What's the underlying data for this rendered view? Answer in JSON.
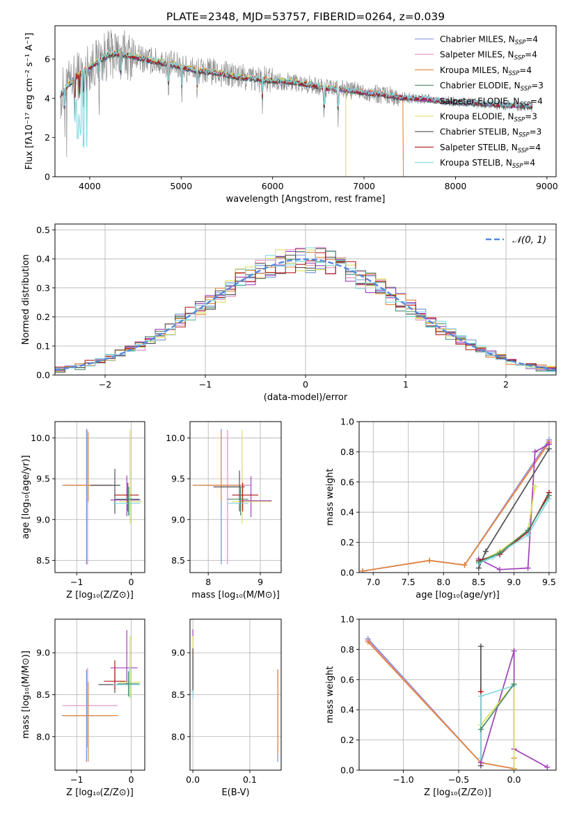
{
  "colors": {
    "series": [
      "#6f8fd8",
      "#e58bc4",
      "#e0863a",
      "#4a8a6a",
      "#a040b8",
      "#d8e05a",
      "#505050",
      "#b01818",
      "#80d8e0"
    ],
    "observed": "#8a8a8a",
    "normal": "#5588dd",
    "grid": "#b0b0b0"
  },
  "chart_data": [
    {
      "id": "spectrum",
      "type": "line",
      "title": "PLATE=2348, MJD=53757, FIBERID=0264, z=0.039",
      "xlabel": "wavelength [Angstrom, rest frame]",
      "ylabel": "Flux [fλ10⁻¹⁷ erg cm⁻² s⁻¹ A⁻¹]",
      "xlim": [
        3620,
        9100
      ],
      "ylim": [
        0,
        7.7
      ],
      "xticks": [
        4000,
        5000,
        6000,
        7000,
        8000,
        9000
      ],
      "yticks": [
        0,
        2,
        4,
        6
      ],
      "grid": false,
      "legend": "top-right",
      "legend_entries": [
        {
          "label": "Chabrier MILES, N",
          "sub": "SSP",
          "tail": "=4"
        },
        {
          "label": "Salpeter MILES, N",
          "sub": "SSP",
          "tail": "=4"
        },
        {
          "label": "Kroupa MILES, N",
          "sub": "SSP",
          "tail": "=4"
        },
        {
          "label": "Chabrier ELODIE, N",
          "sub": "SSP",
          "tail": "=3"
        },
        {
          "label": "Salpeter ELODIE, N",
          "sub": "SSP",
          "tail": "=4"
        },
        {
          "label": "Kroupa ELODIE, N",
          "sub": "SSP",
          "tail": "=3"
        },
        {
          "label": "Chabrier STELIB, N",
          "sub": "SSP",
          "tail": "=3"
        },
        {
          "label": "Salpeter STELIB, N",
          "sub": "SSP",
          "tail": "=4"
        },
        {
          "label": "Kroupa STELIB, N",
          "sub": "SSP",
          "tail": "=4"
        }
      ],
      "continuum": [
        [
          3680,
          4.2
        ],
        [
          3750,
          4.6
        ],
        [
          3850,
          5.1
        ],
        [
          4000,
          5.6
        ],
        [
          4100,
          5.9
        ],
        [
          4200,
          6.2
        ],
        [
          4300,
          6.3
        ],
        [
          4400,
          6.2
        ],
        [
          4500,
          6.1
        ],
        [
          4600,
          6.0
        ],
        [
          4800,
          5.8
        ],
        [
          5000,
          5.6
        ],
        [
          5200,
          5.4
        ],
        [
          5400,
          5.3
        ],
        [
          5600,
          5.1
        ],
        [
          5800,
          5.0
        ],
        [
          6000,
          4.9
        ],
        [
          6200,
          4.85
        ],
        [
          6400,
          4.7
        ],
        [
          6600,
          4.5
        ],
        [
          6800,
          4.45
        ],
        [
          7000,
          4.3
        ],
        [
          7200,
          4.2
        ],
        [
          7400,
          4.05
        ],
        [
          7600,
          4.0
        ],
        [
          7800,
          3.9
        ],
        [
          8000,
          3.8
        ],
        [
          8200,
          3.75
        ],
        [
          8400,
          3.7
        ],
        [
          8600,
          3.65
        ],
        [
          8840,
          3.6
        ]
      ],
      "model_ends": [
        8840,
        8840,
        7430,
        8840,
        8840,
        6800,
        8840,
        8840,
        8840
      ]
    },
    {
      "id": "residuals",
      "type": "line",
      "xlabel": "(data-model)/error",
      "ylabel": "Normed distribution",
      "xlim": [
        -2.5,
        2.5
      ],
      "ylim": [
        0,
        0.52
      ],
      "xticks": [
        -2,
        -1,
        0,
        1,
        2
      ],
      "yticks": [
        0.0,
        0.1,
        0.2,
        0.3,
        0.4,
        0.5
      ],
      "grid": true,
      "legend": "top-right",
      "legend_label": "𝒩(0, 1)",
      "bin_width": 0.1
    },
    {
      "id": "age-vs-Z",
      "type": "scatter",
      "xlabel": "Z [log₁₀(Z/Z⊙)]",
      "ylabel": "age  [log₁₀(age/yr)]",
      "xlim": [
        -1.4,
        0.25
      ],
      "ylim": [
        8.35,
        10.2
      ],
      "xticks": [
        -1,
        0
      ],
      "yticks": [
        8.5,
        9.0,
        9.5,
        10.0
      ],
      "grid": true,
      "points": [
        {
          "x": -0.82,
          "y": 9.42,
          "xerr": [
            0.45,
            0.45
          ],
          "yerr": [
            0.97,
            0.69
          ],
          "c": 0
        },
        {
          "x": -0.8,
          "y": 9.42,
          "xerr": [
            0.46,
            0.46
          ],
          "yerr": [
            0.97,
            0.68
          ],
          "c": 1
        },
        {
          "x": -0.79,
          "y": 9.42,
          "xerr": [
            0.45,
            0.45
          ],
          "yerr": [
            0.2,
            0.65
          ],
          "c": 2
        },
        {
          "x": -0.3,
          "y": 9.42,
          "xerr": [
            0.45,
            0.1
          ],
          "yerr": [
            0.35,
            0.2
          ],
          "c": 6
        },
        {
          "x": -0.08,
          "y": 9.24,
          "xerr": [
            0.3,
            0.25
          ],
          "yerr": [
            0.2,
            0.3
          ],
          "c": 4
        },
        {
          "x": -0.02,
          "y": 9.22,
          "xerr": [
            0.2,
            0.23
          ],
          "yerr": [
            0.27,
            0.88
          ],
          "c": 5
        },
        {
          "x": -0.06,
          "y": 9.3,
          "xerr": [
            0.25,
            0.2
          ],
          "yerr": [
            0.2,
            0.15
          ],
          "c": 7
        },
        {
          "x": -0.03,
          "y": 9.2,
          "xerr": [
            0.3,
            0.2
          ],
          "yerr": [
            0.15,
            0.2
          ],
          "c": 8
        },
        {
          "x": -0.05,
          "y": 9.25,
          "xerr": [
            0.25,
            0.2
          ],
          "yerr": [
            0.2,
            0.15
          ],
          "c": 3
        }
      ]
    },
    {
      "id": "age-vs-mass",
      "type": "scatter",
      "xlabel": "mass [log₁₀(M/M⊙)]",
      "ylabel": "",
      "xlim": [
        7.65,
        9.4
      ],
      "ylim": [
        8.35,
        10.2
      ],
      "xticks": [
        8,
        9
      ],
      "yticks": [
        8.5,
        9.0,
        9.5,
        10.0
      ],
      "grid": true,
      "points": [
        {
          "x": 8.25,
          "y": 9.42,
          "xerr": [
            0.55,
            0.55
          ],
          "yerr": [
            0.97,
            0.69
          ],
          "c": 0
        },
        {
          "x": 8.37,
          "y": 9.42,
          "xerr": [
            0.5,
            0.45
          ],
          "yerr": [
            0.97,
            0.68
          ],
          "c": 1
        },
        {
          "x": 8.25,
          "y": 9.42,
          "xerr": [
            0.55,
            0.4
          ],
          "yerr": [
            0.2,
            0.65
          ],
          "c": 2
        },
        {
          "x": 8.6,
          "y": 9.4,
          "xerr": [
            0.5,
            0.1
          ],
          "yerr": [
            0.3,
            0.2
          ],
          "c": 6
        },
        {
          "x": 8.82,
          "y": 9.23,
          "xerr": [
            0.2,
            0.4
          ],
          "yerr": [
            0.2,
            0.3
          ],
          "c": 4
        },
        {
          "x": 8.65,
          "y": 9.22,
          "xerr": [
            0.2,
            0.55
          ],
          "yerr": [
            0.27,
            0.88
          ],
          "c": 5
        },
        {
          "x": 8.66,
          "y": 9.3,
          "xerr": [
            0.2,
            0.3
          ],
          "yerr": [
            0.2,
            0.15
          ],
          "c": 7
        },
        {
          "x": 8.62,
          "y": 9.2,
          "xerr": [
            0.25,
            0.15
          ],
          "yerr": [
            0.15,
            0.2
          ],
          "c": 8
        },
        {
          "x": 8.62,
          "y": 9.25,
          "xerr": [
            0.25,
            0.15
          ],
          "yerr": [
            0.2,
            0.15
          ],
          "c": 3
        }
      ]
    },
    {
      "id": "weight-vs-age",
      "type": "line",
      "xlabel": "age  [log₁₀(age/yr)]",
      "ylabel": "mass weight",
      "xlim": [
        6.8,
        9.6
      ],
      "ylim": [
        0,
        1.0
      ],
      "xticks": [
        7.0,
        7.5,
        8.0,
        8.5,
        9.0,
        9.5
      ],
      "yticks": [
        0.0,
        0.2,
        0.4,
        0.6,
        0.8,
        1.0
      ],
      "grid": true,
      "series": [
        {
          "c": 0,
          "x": [
            6.85,
            7.8,
            8.3,
            9.5
          ],
          "y": [
            0.01,
            0.08,
            0.05,
            0.88
          ]
        },
        {
          "c": 1,
          "x": [
            6.85,
            7.8,
            8.3,
            9.5
          ],
          "y": [
            0.01,
            0.08,
            0.05,
            0.87
          ]
        },
        {
          "c": 2,
          "x": [
            6.85,
            7.8,
            8.3,
            9.5
          ],
          "y": [
            0.01,
            0.08,
            0.05,
            0.86
          ]
        },
        {
          "c": 6,
          "x": [
            8.5,
            8.6,
            9.5
          ],
          "y": [
            0.03,
            0.14,
            0.82
          ]
        },
        {
          "c": 4,
          "x": [
            8.5,
            8.8,
            9.2,
            9.3,
            9.5
          ],
          "y": [
            0.09,
            0.02,
            0.03,
            0.8,
            0.85
          ]
        },
        {
          "c": 5,
          "x": [
            8.5,
            8.8,
            9.2,
            9.3
          ],
          "y": [
            0.07,
            0.14,
            0.28,
            0.57
          ]
        },
        {
          "c": 7,
          "x": [
            8.5,
            8.8,
            9.2,
            9.5
          ],
          "y": [
            0.08,
            0.12,
            0.27,
            0.53
          ]
        },
        {
          "c": 8,
          "x": [
            8.5,
            8.7,
            9.2,
            9.5
          ],
          "y": [
            0.06,
            0.1,
            0.25,
            0.49
          ]
        },
        {
          "c": 3,
          "x": [
            8.5,
            8.8,
            9.2,
            9.5
          ],
          "y": [
            0.07,
            0.13,
            0.28,
            0.51
          ]
        }
      ]
    },
    {
      "id": "mass-vs-Z",
      "type": "scatter",
      "xlabel": "Z [log₁₀(Z/Z⊙)]",
      "ylabel": "mass [log₁₀(M/M⊙)]",
      "xlim": [
        -1.4,
        0.25
      ],
      "ylim": [
        7.6,
        9.4
      ],
      "xticks": [
        -1,
        0
      ],
      "yticks": [
        8.0,
        8.5,
        9.0
      ],
      "grid": true,
      "points": [
        {
          "x": -0.82,
          "y": 8.25,
          "xerr": [
            0.45,
            0.45
          ],
          "yerr": [
            0.55,
            0.55
          ],
          "c": 0
        },
        {
          "x": -0.8,
          "y": 8.37,
          "xerr": [
            0.46,
            0.55
          ],
          "yerr": [
            0.5,
            0.45
          ],
          "c": 1
        },
        {
          "x": -0.79,
          "y": 8.25,
          "xerr": [
            0.45,
            0.55
          ],
          "yerr": [
            0.55,
            0.4
          ],
          "c": 2
        },
        {
          "x": -0.3,
          "y": 8.62,
          "xerr": [
            0.3,
            0.3
          ],
          "yerr": [
            0.1,
            0.2
          ],
          "c": 6
        },
        {
          "x": -0.08,
          "y": 8.82,
          "xerr": [
            0.3,
            0.2
          ],
          "yerr": [
            0.2,
            0.45
          ],
          "c": 4
        },
        {
          "x": -0.02,
          "y": 8.65,
          "xerr": [
            0.2,
            0.2
          ],
          "yerr": [
            0.2,
            0.55
          ],
          "c": 5
        },
        {
          "x": -0.3,
          "y": 8.66,
          "xerr": [
            0.2,
            0.2
          ],
          "yerr": [
            0.1,
            0.25
          ],
          "c": 7
        },
        {
          "x": -0.03,
          "y": 8.62,
          "xerr": [
            0.3,
            0.2
          ],
          "yerr": [
            0.15,
            0.2
          ],
          "c": 8
        },
        {
          "x": -0.05,
          "y": 8.63,
          "xerr": [
            0.2,
            0.2
          ],
          "yerr": [
            0.15,
            0.15
          ],
          "c": 3
        }
      ]
    },
    {
      "id": "mass-vs-EBV",
      "type": "scatter",
      "xlabel": "E(B-V)",
      "ylabel": "",
      "xlim": [
        -0.005,
        0.155
      ],
      "ylim": [
        7.6,
        9.4
      ],
      "xticks": [
        0.0,
        0.1
      ],
      "yticks": [
        8.0,
        8.5,
        9.0
      ],
      "grid": true,
      "points": [
        {
          "x": 0.0,
          "y": 8.9,
          "yerr": [
            0.4,
            0.38
          ],
          "c": 4
        },
        {
          "x": 0.0,
          "y": 8.9,
          "yerr": [
            0.3,
            0.3
          ],
          "c": 5
        },
        {
          "x": 0.0,
          "y": 8.85,
          "yerr": [
            0.4,
            0.2
          ],
          "c": 7
        },
        {
          "x": 0.0,
          "y": 8.75,
          "yerr": [
            0.3,
            0.2
          ],
          "c": 8
        },
        {
          "x": 0.0,
          "y": 8.85,
          "yerr": [
            0.3,
            0.2
          ],
          "c": 6
        },
        {
          "x": 0.149,
          "y": 8.3,
          "yerr": [
            0.6,
            0.5
          ],
          "c": 0
        },
        {
          "x": 0.149,
          "y": 8.3,
          "yerr": [
            0.5,
            0.5
          ],
          "c": 1
        },
        {
          "x": 0.149,
          "y": 8.3,
          "yerr": [
            0.5,
            0.5
          ],
          "c": 2
        }
      ]
    },
    {
      "id": "weight-vs-Z",
      "type": "line",
      "xlabel": "Z [log₁₀(Z/Z⊙)]",
      "ylabel": "mass weight",
      "xlim": [
        -1.4,
        0.38
      ],
      "ylim": [
        0,
        1.0
      ],
      "xticks": [
        -1.0,
        -0.5,
        0.0
      ],
      "yticks": [
        0.0,
        0.2,
        0.4,
        0.6,
        0.8,
        1.0
      ],
      "grid": true,
      "series": [
        {
          "c": 0,
          "x": [
            -1.32,
            -0.3,
            0.0
          ],
          "y": [
            0.87,
            0.05,
            0.01
          ]
        },
        {
          "c": 1,
          "x": [
            -1.32,
            -0.3,
            0.0
          ],
          "y": [
            0.86,
            0.05,
            0.01
          ]
        },
        {
          "c": 2,
          "x": [
            -1.32,
            -0.3,
            0.0,
            0.0
          ],
          "y": [
            0.85,
            0.05,
            0.01,
            0.08
          ]
        },
        {
          "c": 6,
          "x": [
            -0.3,
            -0.3
          ],
          "y": [
            0.03,
            0.82
          ]
        },
        {
          "c": 7,
          "x": [
            -0.3,
            -0.3
          ],
          "y": [
            0.05,
            0.52
          ]
        },
        {
          "c": 4,
          "x": [
            -0.3,
            0.0,
            0.0,
            0.3
          ],
          "y": [
            0.05,
            0.79,
            0.14,
            0.02
          ]
        },
        {
          "c": 5,
          "x": [
            -0.3,
            0.0,
            0.0
          ],
          "y": [
            0.3,
            0.57,
            0.0
          ]
        },
        {
          "c": 8,
          "x": [
            -0.3,
            -0.3,
            0.0
          ],
          "y": [
            0.08,
            0.49,
            0.56
          ]
        },
        {
          "c": 3,
          "x": [
            -0.3,
            0.0
          ],
          "y": [
            0.27,
            0.57
          ]
        }
      ]
    }
  ]
}
